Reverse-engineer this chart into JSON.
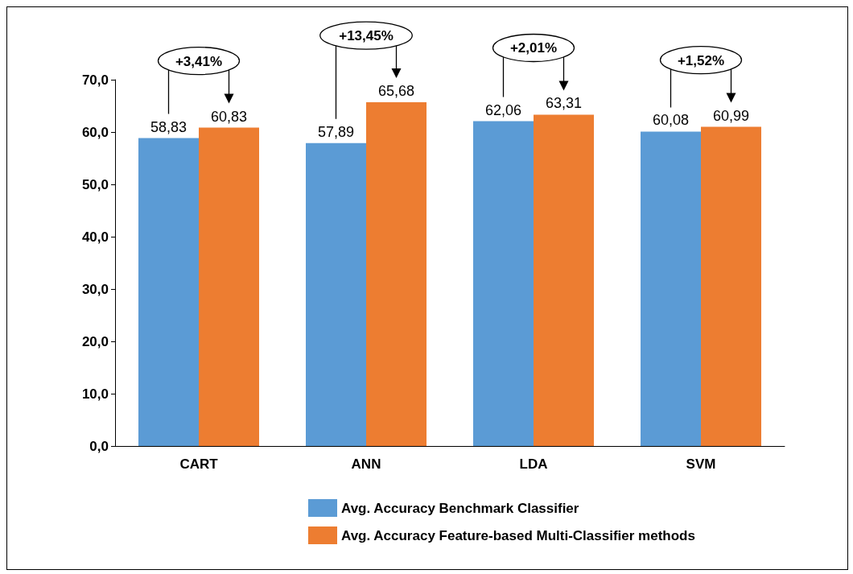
{
  "chart_data": {
    "type": "bar",
    "categories": [
      "CART",
      "ANN",
      "LDA",
      "SVM"
    ],
    "series": [
      {
        "name": "Avg. Accuracy Benchmark Classifier",
        "color": "#5b9bd5",
        "values": [
          58.83,
          57.89,
          62.06,
          60.08
        ],
        "value_labels": [
          "58,83",
          "57,89",
          "62,06",
          "60,08"
        ]
      },
      {
        "name": "Avg. Accuracy Feature-based Multi-Classifier methods",
        "color": "#ed7d31",
        "values": [
          60.83,
          65.68,
          63.31,
          60.99
        ],
        "value_labels": [
          "60,83",
          "65,68",
          "63,31",
          "60,99"
        ]
      }
    ],
    "ylim": [
      0,
      70
    ],
    "yticks": [
      {
        "value": 0,
        "label": "0,0"
      },
      {
        "value": 10,
        "label": "10,0"
      },
      {
        "value": 20,
        "label": "20,0"
      },
      {
        "value": 30,
        "label": "30,0"
      },
      {
        "value": 40,
        "label": "40,0"
      },
      {
        "value": 50,
        "label": "50,0"
      },
      {
        "value": 60,
        "label": "60,0"
      },
      {
        "value": 70,
        "label": "70,0"
      }
    ],
    "annotations": [
      "+3,41%",
      "+13,45%",
      "+2,01%",
      "+1,52%"
    ],
    "grid": false,
    "legend": "bottom"
  }
}
